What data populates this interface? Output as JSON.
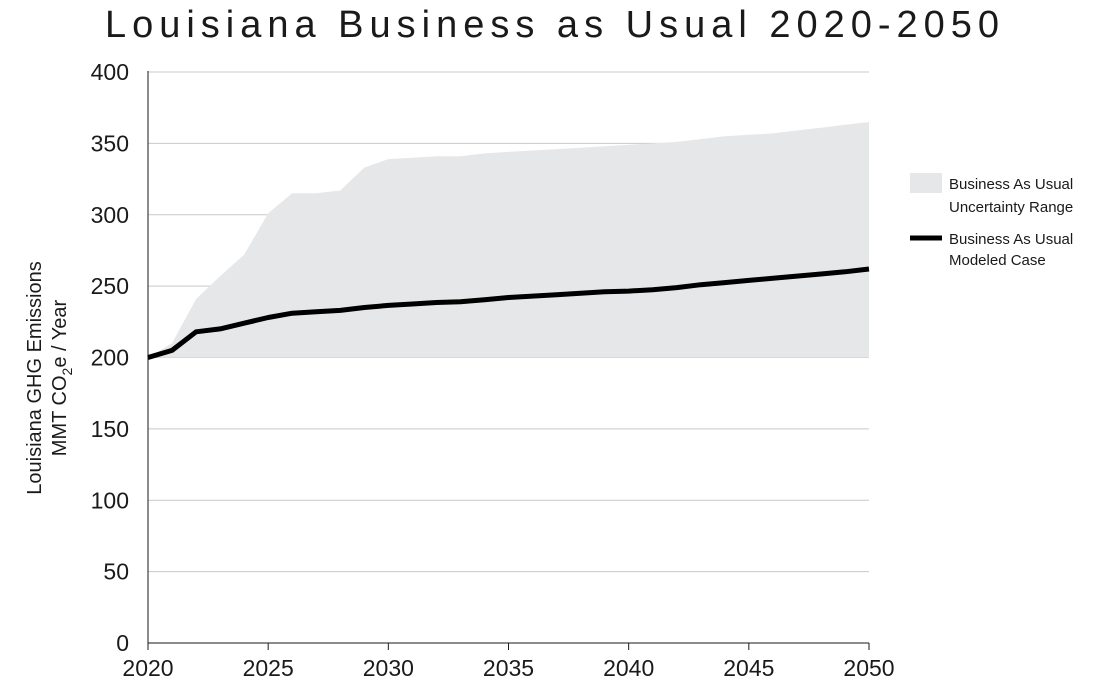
{
  "chart_data": {
    "type": "area",
    "title": "Louisiana Business as Usual 2020-2050",
    "ylabel_line1": "Louisiana GHG Emissions",
    "ylabel_line2_pre": "MMT CO",
    "ylabel_line2_sub": "2",
    "ylabel_line2_post": "e / Year",
    "xlabel": "",
    "xlim": [
      2020,
      2050
    ],
    "ylim": [
      0,
      400
    ],
    "x_ticks": [
      2020,
      2025,
      2030,
      2035,
      2040,
      2045,
      2050
    ],
    "y_ticks": [
      0,
      50,
      100,
      150,
      200,
      250,
      300,
      350,
      400
    ],
    "grid": "horizontal",
    "legend_position": "right",
    "series": [
      {
        "name": "Business As Usual Uncertainty Range",
        "legend_lines": [
          "Business As Usual",
          "Uncertainty Range"
        ],
        "kind": "band",
        "color": "#e6e7e8",
        "x": [
          2020,
          2021,
          2022,
          2023,
          2024,
          2025,
          2026,
          2027,
          2028,
          2029,
          2030,
          2031,
          2032,
          2033,
          2034,
          2035,
          2036,
          2037,
          2038,
          2039,
          2040,
          2041,
          2042,
          2043,
          2044,
          2045,
          2046,
          2047,
          2048,
          2049,
          2050
        ],
        "upper": [
          200,
          210,
          241,
          257,
          272,
          301,
          315,
          315,
          317,
          333,
          339,
          340,
          341,
          341,
          343,
          344,
          345,
          346,
          347,
          348,
          349,
          350,
          351,
          353,
          355,
          356,
          357,
          359,
          361,
          363,
          365
        ],
        "lower": [
          200,
          200,
          200,
          200,
          200,
          200,
          200,
          200,
          200,
          200,
          200,
          200,
          200,
          200,
          200,
          200,
          200,
          200,
          200,
          200,
          200,
          200,
          200,
          200,
          200,
          200,
          200,
          200,
          200,
          200,
          200
        ]
      },
      {
        "name": "Business As Usual Modeled Case",
        "legend_lines": [
          "Business As Usual",
          "Modeled Case"
        ],
        "kind": "line",
        "color": "#000000",
        "x": [
          2020,
          2021,
          2022,
          2023,
          2024,
          2025,
          2026,
          2027,
          2028,
          2029,
          2030,
          2031,
          2032,
          2033,
          2034,
          2035,
          2036,
          2037,
          2038,
          2039,
          2040,
          2041,
          2042,
          2043,
          2044,
          2045,
          2046,
          2047,
          2048,
          2049,
          2050
        ],
        "values": [
          200,
          205,
          218,
          220,
          224,
          228,
          231,
          232,
          233,
          235,
          236.5,
          237.5,
          238.5,
          239,
          240.5,
          242,
          243,
          244,
          245,
          246,
          246.5,
          247.5,
          249,
          251,
          252.5,
          254,
          255.5,
          257,
          258.5,
          260,
          262
        ]
      }
    ]
  }
}
